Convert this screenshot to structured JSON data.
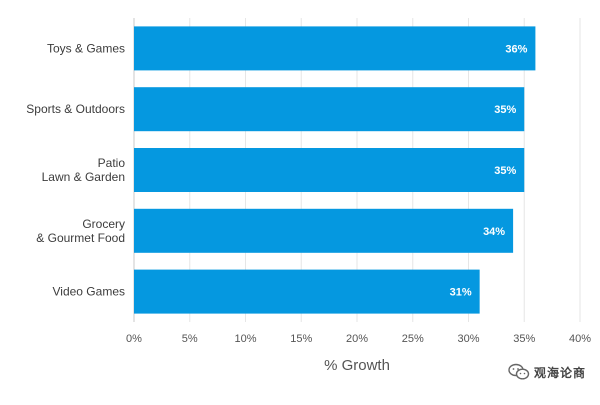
{
  "chart_data": {
    "type": "bar",
    "orientation": "horizontal",
    "categories": [
      [
        "Toys & Games"
      ],
      [
        "Sports & Outdoors"
      ],
      [
        "Patio",
        "Lawn & Garden"
      ],
      [
        "Grocery",
        "& Gourmet Food"
      ],
      [
        "Video Games"
      ]
    ],
    "values": [
      36,
      35,
      35,
      34,
      31
    ],
    "data_labels": [
      "36%",
      "35%",
      "35%",
      "34%",
      "31%"
    ],
    "xlabel": "% Growth",
    "xlim": [
      0,
      40
    ],
    "x_ticks": [
      0,
      5,
      10,
      15,
      20,
      25,
      30,
      35,
      40
    ],
    "x_tick_labels": [
      "0%",
      "5%",
      "10%",
      "15%",
      "20%",
      "25%",
      "30%",
      "35%",
      "40%"
    ],
    "grid": true,
    "legend": "none",
    "colors": {
      "bar": "#0598e0",
      "grid": "#e6e6e6"
    }
  },
  "watermark": {
    "text": "观海论商",
    "icon": "wechat-icon"
  }
}
